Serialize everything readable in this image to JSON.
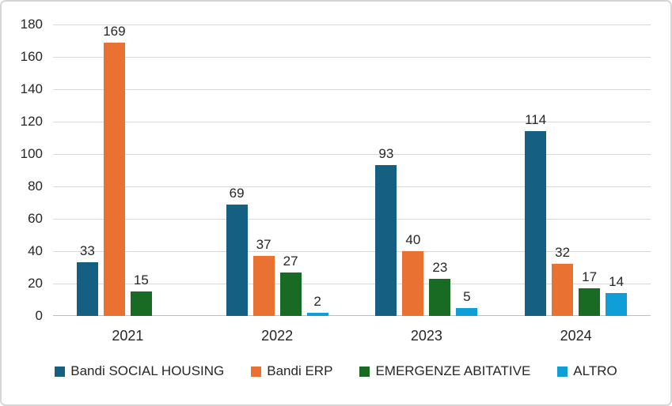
{
  "chart_data": {
    "type": "bar",
    "title": "",
    "xlabel": "",
    "ylabel": "",
    "categories": [
      "2021",
      "2022",
      "2023",
      "2024"
    ],
    "series": [
      {
        "name": "Bandi SOCIAL HOUSING",
        "color": "#156082",
        "values": [
          33,
          69,
          93,
          114
        ]
      },
      {
        "name": "Bandi ERP",
        "color": "#E97132",
        "values": [
          169,
          37,
          40,
          32
        ]
      },
      {
        "name": "EMERGENZE ABITATIVE",
        "color": "#196B24",
        "values": [
          15,
          27,
          23,
          17
        ]
      },
      {
        "name": "ALTRO",
        "color": "#0F9ED5",
        "values": [
          null,
          2,
          5,
          14
        ]
      }
    ],
    "ylim": [
      0,
      180
    ],
    "ytick_step": 20,
    "yticks": [
      0,
      20,
      40,
      60,
      80,
      100,
      120,
      140,
      160,
      180
    ],
    "grid": true,
    "data_labels_shown": true,
    "legend_position": "bottom"
  },
  "style_colors": {
    "background": "#FFFFFF",
    "frame_border": "#D6D6D6",
    "gridline": "#D9D9D9",
    "axis_baseline": "#BFBFBF",
    "label_text": "#262626"
  }
}
